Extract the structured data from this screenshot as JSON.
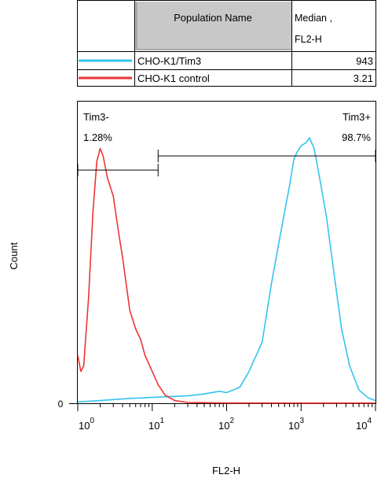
{
  "legend_table": {
    "headers": {
      "population": "Population Name",
      "median_line1": "Median ,",
      "median_line2": "FL2-H"
    },
    "rows": [
      {
        "color": "#35C3EE",
        "name": "CHO-K1/Tim3",
        "median": "943"
      },
      {
        "color": "#EE3333",
        "name": "CHO-K1 control",
        "median": "3.21"
      }
    ]
  },
  "chart_data": {
    "type": "line",
    "xlabel": "FL2-H",
    "ylabel": "Count",
    "x_scale": "log",
    "xlim": [
      1,
      10000
    ],
    "x_ticks": [
      {
        "base": "10",
        "exp": "0",
        "value": 1
      },
      {
        "base": "10",
        "exp": "1",
        "value": 10
      },
      {
        "base": "10",
        "exp": "2",
        "value": 100
      },
      {
        "base": "10",
        "exp": "3",
        "value": 1000
      },
      {
        "base": "10",
        "exp": "4",
        "value": 10000
      }
    ],
    "y_tick_label": "0",
    "ylim": [
      0,
      100
    ],
    "gates": [
      {
        "label": "Tim3-",
        "percent": "1.28%",
        "from": 1,
        "to": 12
      },
      {
        "label": "Tim3+",
        "percent": "98.7%",
        "from": 12,
        "to": 10000
      }
    ],
    "series": [
      {
        "name": "CHO-K1/Tim3",
        "color": "#35C3EE",
        "points": [
          [
            1,
            0.5
          ],
          [
            2,
            1
          ],
          [
            5,
            1.8
          ],
          [
            10,
            2.2
          ],
          [
            30,
            2.8
          ],
          [
            50,
            3.5
          ],
          [
            80,
            4.5
          ],
          [
            100,
            4
          ],
          [
            150,
            6
          ],
          [
            200,
            12
          ],
          [
            300,
            23
          ],
          [
            400,
            45
          ],
          [
            500,
            60
          ],
          [
            600,
            72
          ],
          [
            700,
            82
          ],
          [
            800,
            92
          ],
          [
            900,
            95
          ],
          [
            1000,
            97
          ],
          [
            1150,
            98
          ],
          [
            1300,
            100
          ],
          [
            1500,
            96
          ],
          [
            1800,
            84
          ],
          [
            2200,
            70
          ],
          [
            2800,
            48
          ],
          [
            3500,
            28
          ],
          [
            4500,
            14
          ],
          [
            6000,
            5
          ],
          [
            8000,
            2
          ],
          [
            10000,
            1
          ]
        ]
      },
      {
        "name": "CHO-K1 control",
        "color": "#EE3333",
        "points": [
          [
            1,
            18
          ],
          [
            1.1,
            12
          ],
          [
            1.2,
            14
          ],
          [
            1.4,
            40
          ],
          [
            1.6,
            72
          ],
          [
            1.8,
            91
          ],
          [
            2,
            96
          ],
          [
            2.2,
            93
          ],
          [
            2.5,
            85
          ],
          [
            3,
            78
          ],
          [
            3.5,
            65
          ],
          [
            4,
            55
          ],
          [
            5,
            35
          ],
          [
            6,
            28
          ],
          [
            7,
            24
          ],
          [
            8,
            18
          ],
          [
            10,
            12
          ],
          [
            12,
            7
          ],
          [
            15,
            3
          ],
          [
            20,
            1
          ],
          [
            30,
            0.3
          ],
          [
            100,
            0.1
          ],
          [
            1000,
            0.05
          ],
          [
            10000,
            0.05
          ]
        ]
      }
    ]
  }
}
